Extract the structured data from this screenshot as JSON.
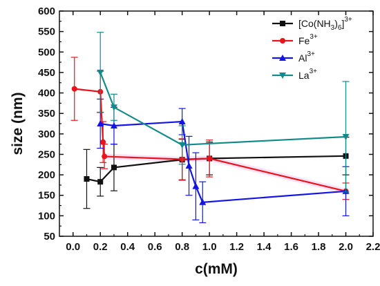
{
  "chart_data": {
    "type": "line",
    "xlabel": "c(mM)",
    "ylabel": "size (nm)",
    "xlim": [
      -0.1,
      2.2
    ],
    "ylim": [
      50,
      600
    ],
    "xticks": [
      "0.0",
      "0.2",
      "0.4",
      "0.6",
      "0.8",
      "1.0",
      "1.2",
      "1.4",
      "1.6",
      "1.8",
      "2.0",
      "2.2"
    ],
    "yticks": [
      "50",
      "100",
      "150",
      "200",
      "250",
      "300",
      "350",
      "400",
      "450",
      "500",
      "550",
      "600"
    ],
    "legend_position": "top-right",
    "error_bars": true,
    "series": [
      {
        "name": "[Co(NH3)6]3+",
        "label_base": "[Co(NH",
        "label_sub1": "3",
        "label_mid": ")",
        "label_sub2": "6",
        "label_mid2": "]",
        "label_sup": "3+",
        "color": "#111111",
        "marker": "square",
        "points": [
          {
            "x": 0.1,
            "y": 190,
            "err": 72
          },
          {
            "x": 0.2,
            "y": 183,
            "err": 35
          },
          {
            "x": 0.3,
            "y": 218,
            "err": 57
          },
          {
            "x": 0.8,
            "y": 237,
            "err": 50
          },
          {
            "x": 1.0,
            "y": 240,
            "err": 40
          },
          {
            "x": 2.0,
            "y": 246,
            "err": 46
          }
        ]
      },
      {
        "name": "Fe3+",
        "label_base": "Fe",
        "label_sup": "3+",
        "color": "#e8141c",
        "marker": "circle",
        "points": [
          {
            "x": 0.01,
            "y": 410,
            "err": 77
          },
          {
            "x": 0.2,
            "y": 403,
            "err": 50
          },
          {
            "x": 0.22,
            "y": 280,
            "err": 50
          },
          {
            "x": 0.23,
            "y": 245,
            "err": 30
          },
          {
            "x": 0.8,
            "y": 238,
            "err": 50
          },
          {
            "x": 1.0,
            "y": 240,
            "err": 45
          },
          {
            "x": 2.0,
            "y": 160,
            "err": 20
          }
        ]
      },
      {
        "name": "Al3+",
        "label_base": "Al",
        "label_sup": "3+",
        "color": "#1414e6",
        "marker": "triangle-up",
        "points": [
          {
            "x": 0.2,
            "y": 325,
            "err": 60
          },
          {
            "x": 0.3,
            "y": 320,
            "err": 45
          },
          {
            "x": 0.8,
            "y": 330,
            "err": 32
          },
          {
            "x": 0.85,
            "y": 222,
            "err": 72
          },
          {
            "x": 0.9,
            "y": 172,
            "err": 82
          },
          {
            "x": 0.95,
            "y": 133,
            "err": 50
          },
          {
            "x": 2.0,
            "y": 160,
            "err": 60
          }
        ]
      },
      {
        "name": "La3+",
        "label_base": "La",
        "label_sup": "3+",
        "color": "#138a8a",
        "marker": "triangle-down",
        "points": [
          {
            "x": 0.2,
            "y": 450,
            "err": 98
          },
          {
            "x": 0.3,
            "y": 365,
            "err": 32
          },
          {
            "x": 0.8,
            "y": 273,
            "err": 47
          },
          {
            "x": 2.0,
            "y": 293,
            "err": 135
          }
        ]
      }
    ]
  }
}
